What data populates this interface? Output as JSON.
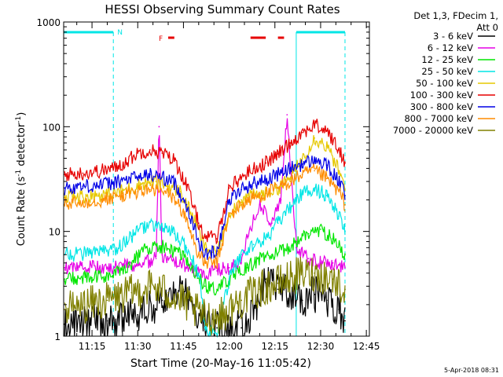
{
  "chart_data": {
    "type": "line",
    "title": "HESSI Observing Summary Count Rates",
    "xlabel": "Start Time (20-May-16 11:05:42)",
    "ylabel": "Count Rate (s",
    "ylabel_sup1": "-1",
    "ylabel_mid": " detector",
    "ylabel_sup2": "-1",
    "ylabel_end": ")",
    "y_scale": "log",
    "ylim": [
      1,
      1000
    ],
    "xlim": [
      "11:05:42",
      "12:46:00"
    ],
    "x_ticks": [
      "11:15",
      "11:30",
      "11:45",
      "12:00",
      "12:15",
      "12:30",
      "12:45"
    ],
    "y_ticks": [
      "1",
      "10",
      "100",
      "1000"
    ],
    "grid": false,
    "legend": {
      "position": "right",
      "header": [
        "Det 1,3, FDecim 1,",
        "Att 0"
      ],
      "entries": [
        {
          "label": "3 - 6 keV",
          "color": "#000000"
        },
        {
          "label": "6 - 12 keV",
          "color": "#e600e6"
        },
        {
          "label": "12 - 25 keV",
          "color": "#00e600"
        },
        {
          "label": "25 - 50 keV",
          "color": "#00e6e6"
        },
        {
          "label": "50 - 100 keV",
          "color": "#e6c800"
        },
        {
          "label": "100 - 300 keV",
          "color": "#e60000"
        },
        {
          "label": "300 - 800 keV",
          "color": "#0000e6"
        },
        {
          "label": "800 - 7000 keV",
          "color": "#ff8c00"
        },
        {
          "label": "7000 - 20000 keV",
          "color": "#808000"
        }
      ]
    },
    "annotations": {
      "night_label": "N",
      "flare_label": "F",
      "night_intervals": [
        [
          "11:05:42",
          "11:22:00"
        ],
        [
          "12:22:00",
          "12:38:00"
        ]
      ],
      "flare_intervals": [
        [
          "11:40:00",
          "11:42:00"
        ],
        [
          "12:07:00",
          "12:12:00"
        ],
        [
          "12:16:00",
          "12:18:00"
        ]
      ],
      "footer_date": "5-Apr-2018 08:31"
    },
    "series": [
      {
        "name": "3 - 6 keV",
        "color": "#000000",
        "x": [
          "11:06",
          "11:20",
          "11:30",
          "11:38",
          "11:45",
          "11:48",
          "11:52",
          "11:56",
          "12:00",
          "12:04",
          "12:08",
          "12:12",
          "12:16",
          "12:20",
          "12:24",
          "12:28",
          "12:32",
          "12:36",
          "12:38"
        ],
        "y": [
          1.3,
          1.4,
          1.6,
          2.2,
          2.8,
          2.0,
          1.5,
          1.2,
          1.1,
          1.2,
          1.8,
          3.5,
          2.8,
          2.4,
          2.2,
          2.5,
          2.2,
          1.8,
          1.4
        ]
      },
      {
        "name": "6 - 12 keV",
        "color": "#e600e6",
        "x": [
          "11:06",
          "11:20",
          "11:30",
          "11:36",
          "11:37",
          "11:38",
          "11:44",
          "11:50",
          "11:56",
          "12:00",
          "12:04",
          "12:06",
          "12:10",
          "12:14",
          "12:17",
          "12:19",
          "12:22",
          "12:26",
          "12:30",
          "12:34",
          "12:38"
        ],
        "y": [
          4.5,
          4.5,
          4.8,
          5.5,
          100,
          6.0,
          5.0,
          4.0,
          4.2,
          4.5,
          5.0,
          9.0,
          18.0,
          12.0,
          20.0,
          130.0,
          7.0,
          5.5,
          5.0,
          5.0,
          4.5
        ]
      },
      {
        "name": "12 - 25 keV",
        "color": "#00e600",
        "x": [
          "11:06",
          "11:15",
          "11:22",
          "11:28",
          "11:33",
          "11:38",
          "11:44",
          "11:48",
          "11:52",
          "11:56",
          "12:00",
          "12:06",
          "12:10",
          "12:14",
          "12:18",
          "12:22",
          "12:26",
          "12:30",
          "12:34",
          "12:38"
        ],
        "y": [
          3.5,
          3.6,
          3.8,
          5.0,
          7.0,
          7.2,
          6.0,
          4.5,
          3.0,
          2.8,
          3.5,
          4.5,
          5.5,
          6.0,
          6.5,
          8.0,
          9.5,
          10.5,
          8.5,
          6.0
        ]
      },
      {
        "name": "25 - 50 keV",
        "color": "#00e6e6",
        "x": [
          "11:06",
          "11:15",
          "11:22",
          "11:28",
          "11:32",
          "11:36",
          "11:42",
          "11:46",
          "11:50",
          "11:52",
          "11:56",
          "12:00",
          "12:04",
          "12:08",
          "12:12",
          "12:16",
          "12:20",
          "12:24",
          "12:28",
          "12:32",
          "12:36",
          "12:38"
        ],
        "y": [
          6.0,
          6.2,
          6.5,
          9.0,
          11.0,
          11.5,
          9.5,
          7.0,
          4.0,
          1.2,
          1.0,
          3.5,
          6.0,
          7.5,
          8.5,
          12.0,
          17.0,
          23.0,
          26.0,
          22.0,
          14.0,
          10.0
        ]
      },
      {
        "name": "50 - 100 keV",
        "color": "#e6c800",
        "x": [
          "11:06",
          "11:15",
          "11:22",
          "11:28",
          "11:32",
          "11:36",
          "11:40",
          "11:44",
          "11:48",
          "11:52",
          "11:56",
          "12:00",
          "12:04",
          "12:08",
          "12:12",
          "12:16",
          "12:20",
          "12:24",
          "12:28",
          "12:32",
          "12:36",
          "12:38"
        ],
        "y": [
          21.0,
          22.0,
          23.0,
          26.0,
          29.0,
          30.0,
          27.0,
          24.0,
          14.0,
          7.0,
          6.0,
          15.0,
          20.0,
          22.0,
          23.0,
          26.0,
          32.0,
          50.0,
          78.0,
          65.0,
          38.0,
          25.0
        ]
      },
      {
        "name": "100 - 300 keV",
        "color": "#e60000",
        "x": [
          "11:06",
          "11:12",
          "11:18",
          "11:22",
          "11:26",
          "11:30",
          "11:34",
          "11:38",
          "11:42",
          "11:46",
          "11:50",
          "11:52",
          "11:56",
          "12:00",
          "12:04",
          "12:08",
          "12:12",
          "12:16",
          "12:20",
          "12:24",
          "12:28",
          "12:32",
          "12:36",
          "12:38"
        ],
        "y": [
          35.0,
          36.0,
          38.0,
          40.0,
          46.0,
          56.0,
          60.0,
          56.0,
          48.0,
          28.0,
          12.0,
          9.0,
          8.5,
          26.0,
          33.0,
          40.0,
          45.0,
          55.0,
          70.0,
          88.0,
          104.0,
          92.0,
          60.0,
          45.0
        ]
      },
      {
        "name": "300 - 800 keV",
        "color": "#0000e6",
        "x": [
          "11:06",
          "11:12",
          "11:18",
          "11:22",
          "11:26",
          "11:30",
          "11:34",
          "11:38",
          "11:42",
          "11:46",
          "11:50",
          "11:52",
          "11:56",
          "12:00",
          "12:04",
          "12:08",
          "12:12",
          "12:16",
          "12:20",
          "12:24",
          "12:28",
          "12:32",
          "12:36",
          "12:38"
        ],
        "y": [
          26.0,
          27.0,
          28.0,
          29.0,
          31.0,
          33.0,
          35.0,
          33.0,
          29.0,
          18.0,
          8.0,
          6.0,
          6.5,
          20.0,
          25.0,
          29.0,
          31.0,
          35.0,
          40.0,
          44.0,
          48.0,
          43.0,
          30.0,
          22.0
        ]
      },
      {
        "name": "800 - 7000 keV",
        "color": "#ff8c00",
        "x": [
          "11:06",
          "11:12",
          "11:18",
          "11:22",
          "11:26",
          "11:30",
          "11:34",
          "11:38",
          "11:42",
          "11:46",
          "11:50",
          "11:52",
          "11:56",
          "12:00",
          "12:04",
          "12:08",
          "12:12",
          "12:16",
          "12:20",
          "12:24",
          "12:28",
          "12:32",
          "12:36",
          "12:38"
        ],
        "y": [
          18.0,
          19.0,
          20.0,
          21.0,
          22.5,
          24.0,
          25.0,
          24.0,
          21.0,
          13.0,
          6.0,
          5.0,
          5.0,
          14.0,
          18.0,
          21.0,
          23.0,
          26.0,
          30.0,
          35.0,
          38.0,
          32.0,
          24.0,
          18.0
        ]
      },
      {
        "name": "7000 - 20000 keV",
        "color": "#808000",
        "x": [
          "11:06",
          "11:20",
          "11:28",
          "11:34",
          "11:40",
          "11:46",
          "11:52",
          "11:58",
          "12:04",
          "12:10",
          "12:16",
          "12:22",
          "12:28",
          "12:34",
          "12:38"
        ],
        "y": [
          1.8,
          2.2,
          2.6,
          3.0,
          2.6,
          2.0,
          1.5,
          1.6,
          2.2,
          2.8,
          3.2,
          3.8,
          4.0,
          3.5,
          2.8
        ]
      }
    ]
  }
}
